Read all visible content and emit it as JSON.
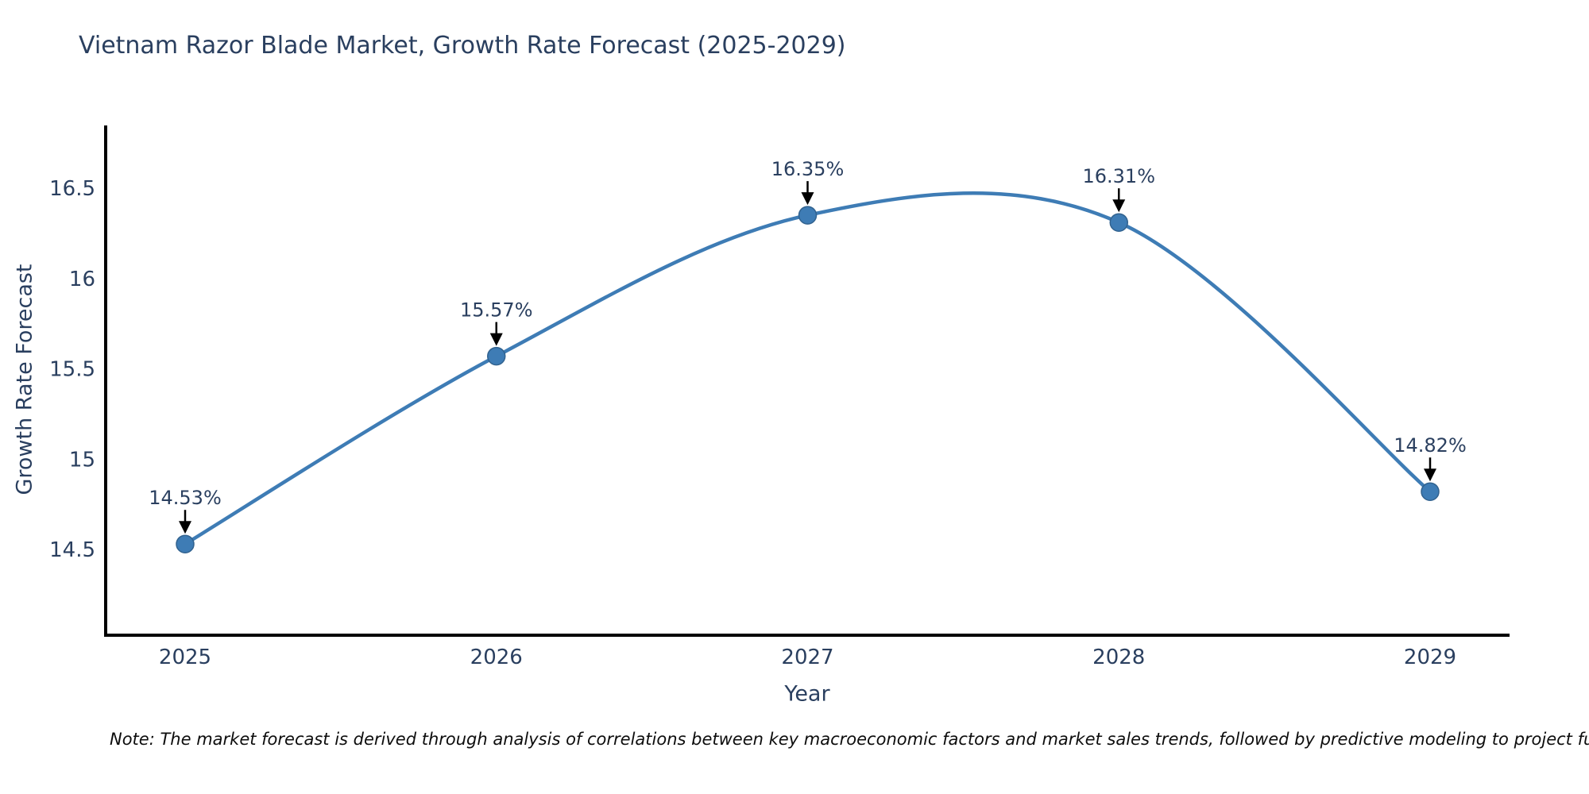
{
  "title": "Vietnam Razor Blade Market, Growth Rate Forecast (2025-2029)",
  "note": "Note: The market forecast is derived through analysis of correlations between key macroeconomic factors and market sales trends, followed by predictive modeling to project future sal",
  "chart_data": {
    "type": "line",
    "line_shape": "spline",
    "title": "Vietnam Razor Blade Market, Growth Rate Forecast (2025-2029)",
    "xlabel": "Year",
    "ylabel": "Growth Rate Forecast",
    "categories": [
      "2025",
      "2026",
      "2027",
      "2028",
      "2029"
    ],
    "values": [
      14.53,
      15.57,
      16.35,
      16.31,
      14.82
    ],
    "point_labels": [
      "14.53%",
      "15.57%",
      "16.35%",
      "16.31%",
      "14.82%"
    ],
    "yticks": [
      14.5,
      15,
      15.5,
      16,
      16.5
    ],
    "ytick_labels": [
      "14.5",
      "15",
      "15.5",
      "16",
      "16.5"
    ],
    "ylim": [
      14.03,
      16.84
    ],
    "grid": false,
    "legend": "none",
    "markers": true,
    "annotations_arrows": true,
    "colors": {
      "line": "#3e7cb5",
      "marker": "#3e7cb5",
      "marker_edge": "#31628f",
      "axis": "#000000",
      "text": "#2a3f5f",
      "arrow": "#000000",
      "note_text": "#0d0d0d",
      "background": "#ffffff"
    }
  }
}
